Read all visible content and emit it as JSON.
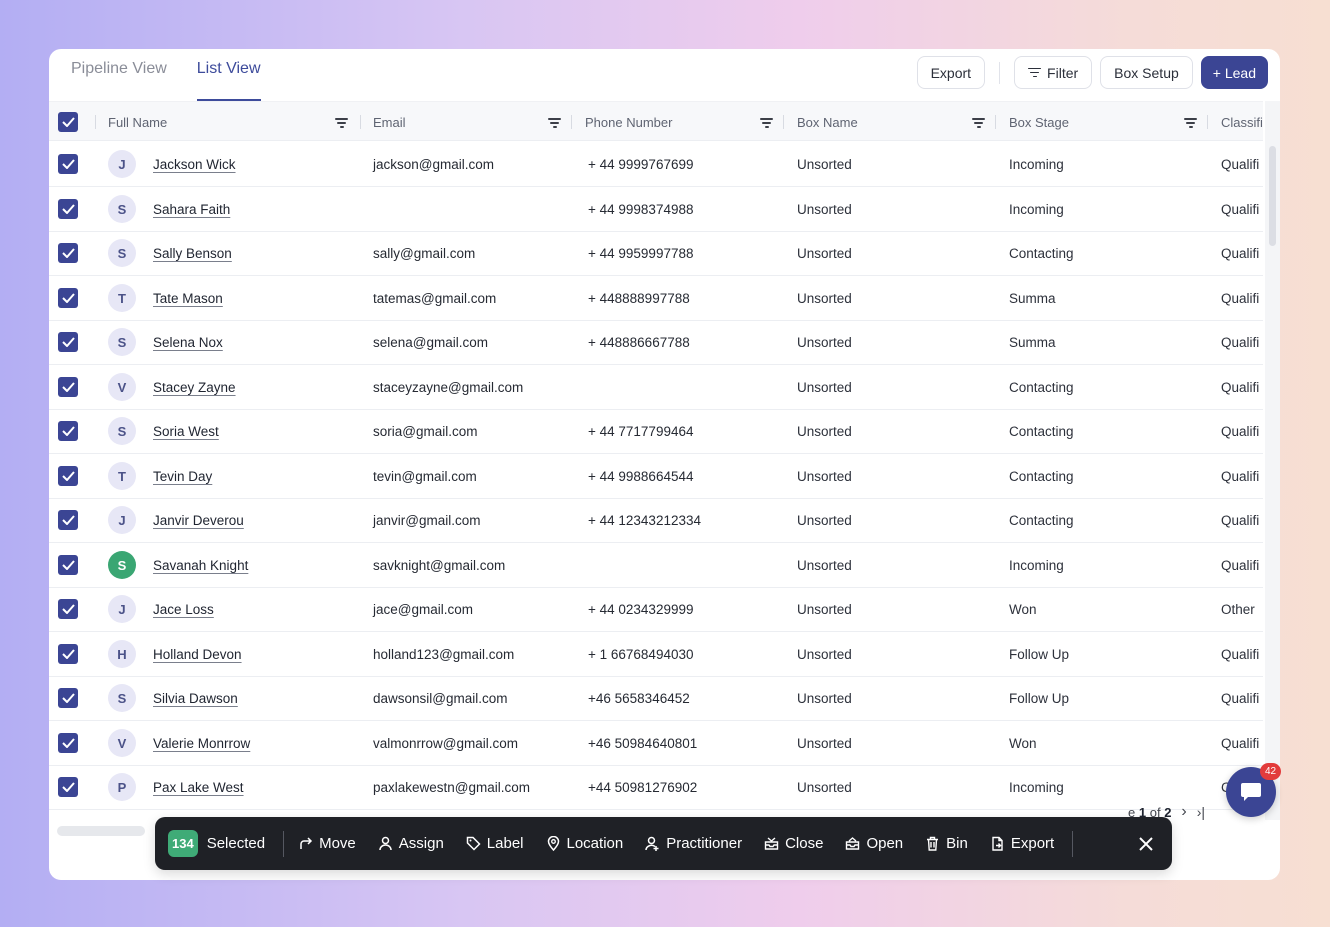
{
  "tabs": [
    {
      "label": "Pipeline View",
      "active": false
    },
    {
      "label": "List View",
      "active": true
    }
  ],
  "toolbar": {
    "export_label": "Export",
    "filter_label": "Filter",
    "box_setup_label": "Box Setup",
    "lead_label": "+ Lead"
  },
  "columns": {
    "full_name": "Full Name",
    "email": "Email",
    "phone": "Phone Number",
    "box_name": "Box Name",
    "box_stage": "Box Stage",
    "classification": "Classifica"
  },
  "rows": [
    {
      "initial": "J",
      "name": "Jackson Wick",
      "email": "jackson@gmail.com",
      "phone": "+ 44 9999767699",
      "box": "Unsorted",
      "stage": "Incoming",
      "class": "Qualifi"
    },
    {
      "initial": "S",
      "name": "Sahara Faith",
      "email": "",
      "phone": "+ 44 9998374988",
      "box": "Unsorted",
      "stage": "Incoming",
      "class": "Qualifi"
    },
    {
      "initial": "S",
      "name": "Sally Benson",
      "email": "sally@gmail.com",
      "phone": "+ 44 9959997788",
      "box": "Unsorted",
      "stage": "Contacting",
      "class": "Qualifi"
    },
    {
      "initial": "T",
      "name": "Tate Mason",
      "email": "tatemas@gmail.com",
      "phone": "+ 448888997788",
      "box": "Unsorted",
      "stage": "Summa",
      "class": "Qualifi"
    },
    {
      "initial": "S",
      "name": "Selena Nox",
      "email": "selena@gmail.com",
      "phone": "+ 448886667788",
      "box": "Unsorted",
      "stage": "Summa",
      "class": "Qualifi"
    },
    {
      "initial": "V",
      "name": "Stacey Zayne",
      "email": "staceyzayne@gmail.com",
      "phone": "",
      "box": "Unsorted",
      "stage": "Contacting",
      "class": "Qualifi"
    },
    {
      "initial": "S",
      "name": "Soria West",
      "email": "soria@gmail.com",
      "phone": "+ 44 7717799464",
      "box": "Unsorted",
      "stage": "Contacting",
      "class": "Qualifi"
    },
    {
      "initial": "T",
      "name": "Tevin Day",
      "email": "tevin@gmail.com",
      "phone": "+ 44 9988664544",
      "box": "Unsorted",
      "stage": "Contacting",
      "class": "Qualifi"
    },
    {
      "initial": "J",
      "name": "Janvir Deverou",
      "email": "janvir@gmail.com",
      "phone": "+ 44 12343212334",
      "box": "Unsorted",
      "stage": "Contacting",
      "class": "Qualifi"
    },
    {
      "initial": "S",
      "name": "Savanah Knight",
      "email": "savknight@gmail.com",
      "phone": "",
      "box": "Unsorted",
      "stage": "Incoming",
      "class": "Qualifi",
      "green": true
    },
    {
      "initial": "J",
      "name": "Jace Loss",
      "email": "jace@gmail.com",
      "phone": "+ 44 0234329999",
      "box": "Unsorted",
      "stage": "Won",
      "class": "Other"
    },
    {
      "initial": "H",
      "name": "Holland Devon",
      "email": "holland123@gmail.com",
      "phone": "+ 1 66768494030",
      "box": "Unsorted",
      "stage": "Follow Up",
      "class": "Qualifi"
    },
    {
      "initial": "S",
      "name": "Silvia Dawson",
      "email": "dawsonsil@gmail.com",
      "phone": "+46 5658346452",
      "box": "Unsorted",
      "stage": "Follow Up",
      "class": "Qualifi"
    },
    {
      "initial": "V",
      "name": "Valerie Monrrow",
      "email": "valmonrrow@gmail.com",
      "phone": "+46 50984640801",
      "box": "Unsorted",
      "stage": "Won",
      "class": "Qualifi"
    },
    {
      "initial": "P",
      "name": "Pax Lake West",
      "email": "paxlakewestn@gmail.com",
      "phone": "+44 50981276902",
      "box": "Unsorted",
      "stage": "Incoming",
      "class": "C"
    }
  ],
  "selection_bar": {
    "count": "134",
    "selected_label": "Selected",
    "actions": [
      {
        "label": "Move",
        "icon": "move-icon"
      },
      {
        "label": "Assign",
        "icon": "person-icon"
      },
      {
        "label": "Label",
        "icon": "tag-icon"
      },
      {
        "label": "Location",
        "icon": "location-pin-icon"
      },
      {
        "label": "Practitioner",
        "icon": "add-person-icon"
      },
      {
        "label": "Close",
        "icon": "inbox-icon"
      },
      {
        "label": "Open",
        "icon": "inbox-open-icon"
      },
      {
        "label": "Bin",
        "icon": "trash-icon"
      },
      {
        "label": "Export",
        "icon": "file-export-icon"
      }
    ]
  },
  "pager": {
    "prefix": "e",
    "current": "1",
    "of_label": "of",
    "total": "2"
  },
  "chat": {
    "badge": "42"
  },
  "colors": {
    "accent": "#3b4594",
    "selected_green": "#3fab77",
    "badge_red": "#e23c3c"
  }
}
